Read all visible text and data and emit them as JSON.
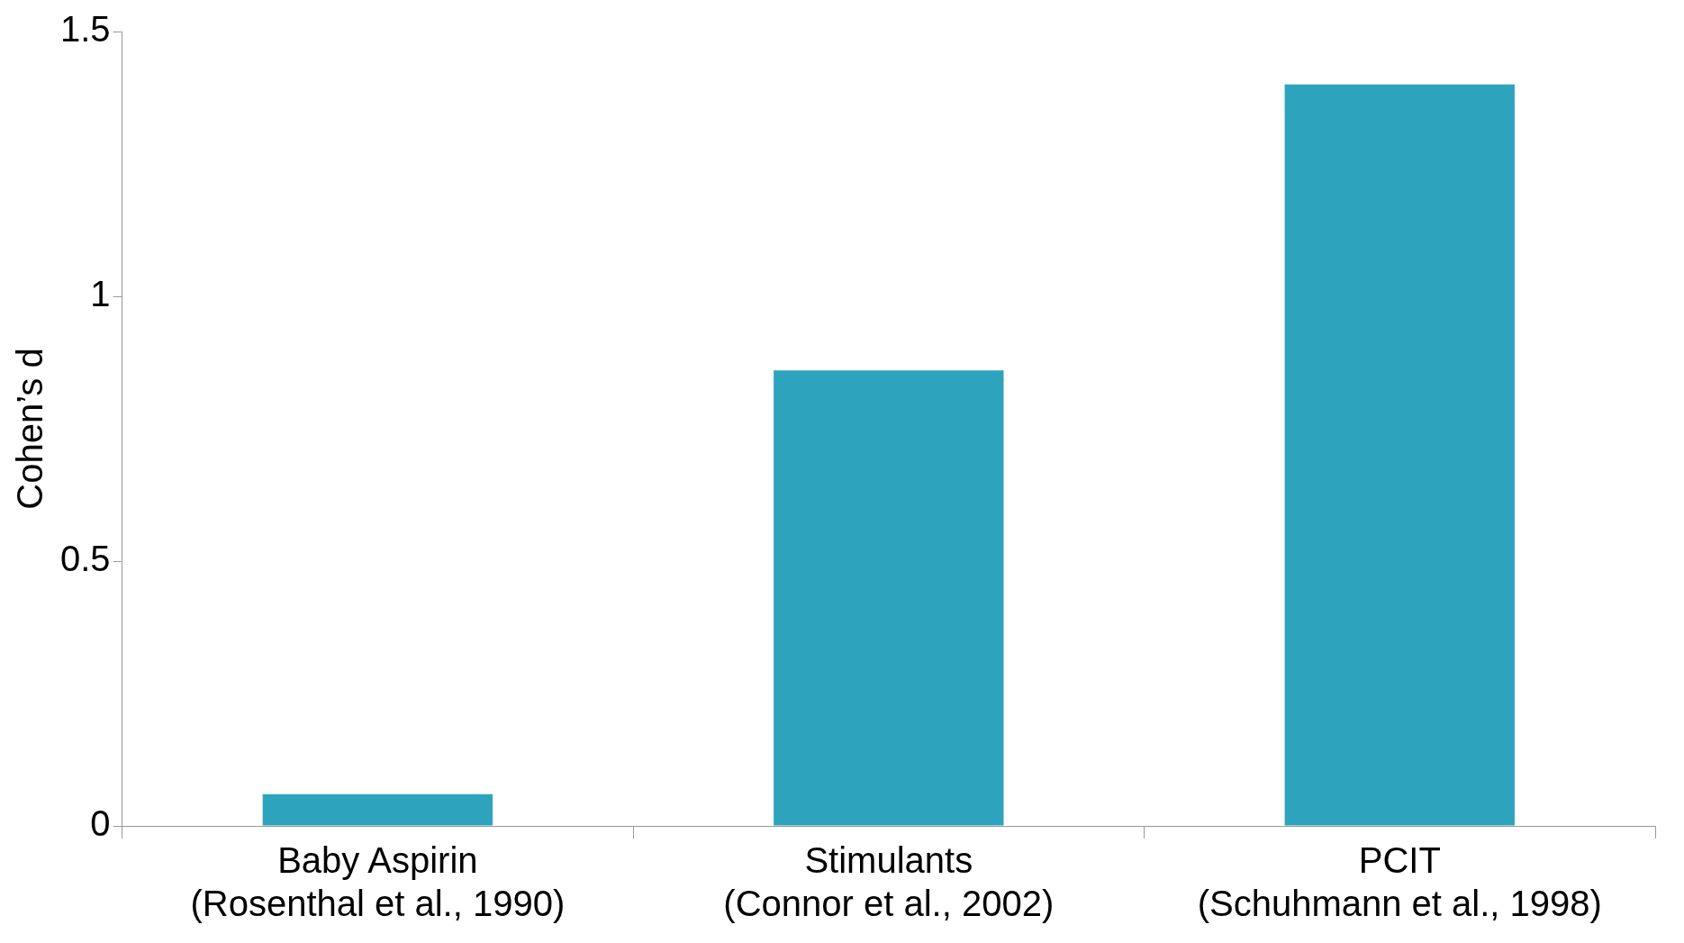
{
  "chart_data": {
    "type": "bar",
    "ylabel": "Cohen’s d",
    "categories": [
      "Baby Aspirin\n(Rosenthal et al., 1990)",
      "Stimulants\n(Connor et al., 2002)",
      "PCIT\n(Schuhmann et al., 1998)"
    ],
    "values": [
      0.06,
      0.86,
      1.4
    ],
    "color": "#2ea3be",
    "ylim": [
      0,
      1.5
    ],
    "yticks": [
      0,
      0.5,
      1,
      1.5
    ],
    "grid": false,
    "legend": false
  }
}
